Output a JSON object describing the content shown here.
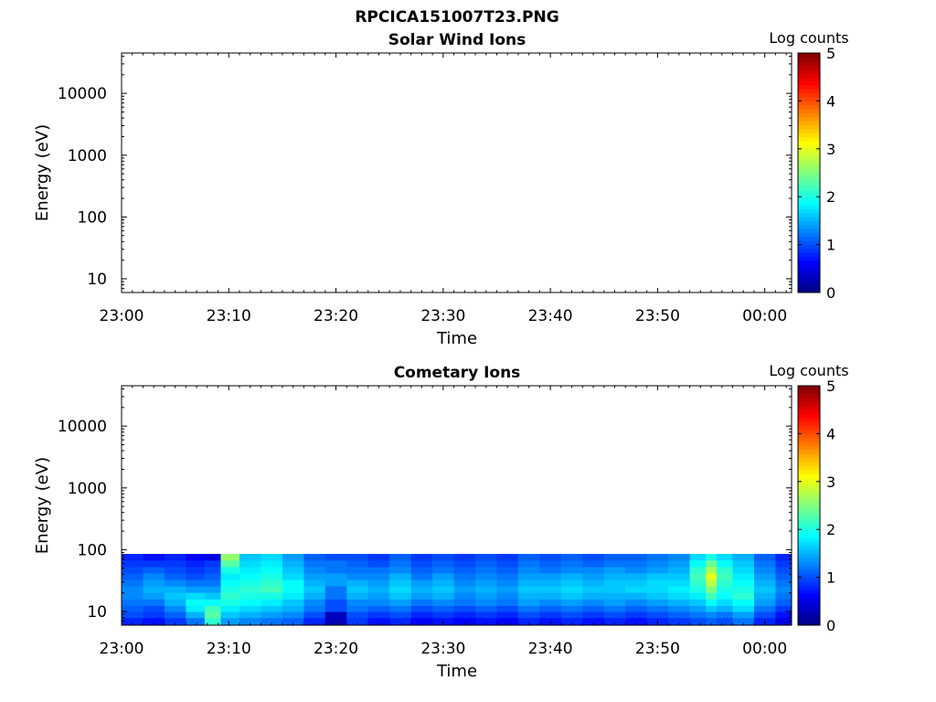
{
  "figure": {
    "title": "RPCICA151007T23.PNG"
  },
  "colormap": [
    "#00007f",
    "#0000ff",
    "#007fff",
    "#00ffff",
    "#7fff7f",
    "#ffff00",
    "#ff7f00",
    "#ff0000",
    "#7f0000"
  ],
  "chart_data": [
    {
      "type": "heatmap",
      "title": "Solar Wind Ions",
      "xlabel": "Time",
      "ylabel": "Energy (eV)",
      "x_ticks": [
        "23:00",
        "23:10",
        "23:20",
        "23:30",
        "23:40",
        "23:50",
        "00:00"
      ],
      "x_tick_minutes": [
        0,
        10,
        20,
        30,
        40,
        50,
        60
      ],
      "xlim_minutes": [
        0,
        62.5
      ],
      "y_scale": "log",
      "ylim": [
        6,
        45000
      ],
      "y_ticks": [
        10,
        100,
        1000,
        10000
      ],
      "y_tick_labels": [
        "10",
        "100",
        "1000",
        "10000"
      ],
      "colorbar": {
        "label": "Log counts",
        "range": [
          0,
          5
        ],
        "ticks": [
          "0",
          "1",
          "2",
          "3",
          "4",
          "5"
        ]
      },
      "data": []
    },
    {
      "type": "heatmap",
      "title": "Cometary Ions",
      "xlabel": "Time",
      "ylabel": "Energy (eV)",
      "x_ticks": [
        "23:00",
        "23:10",
        "23:20",
        "23:30",
        "23:40",
        "23:50",
        "00:00"
      ],
      "x_tick_minutes": [
        0,
        10,
        20,
        30,
        40,
        50,
        60
      ],
      "xlim_minutes": [
        0,
        62.5
      ],
      "y_scale": "log",
      "ylim": [
        6,
        45000
      ],
      "y_ticks": [
        10,
        100,
        1000,
        10000
      ],
      "y_tick_labels": [
        "10",
        "100",
        "1000",
        "10000"
      ],
      "colorbar": {
        "label": "Log counts",
        "range": [
          0,
          5
        ],
        "ticks": [
          "0",
          "1",
          "2",
          "3",
          "4",
          "5"
        ]
      },
      "energy_bins_eV": [
        7,
        9,
        11,
        14,
        18,
        23,
        29,
        37,
        47,
        60,
        76
      ],
      "time_bins_minutes": [
        1,
        3,
        5,
        7,
        8.5,
        10,
        12,
        14,
        16,
        18,
        20,
        22,
        24,
        26,
        28,
        30,
        32,
        34,
        36,
        38,
        40,
        42,
        44,
        46,
        48,
        50,
        52,
        54,
        55,
        56,
        58,
        60,
        62
      ],
      "log_counts": [
        [
          0.8,
          1.0,
          1.1,
          1.2,
          1.3,
          1.3,
          1.2,
          1.1,
          1.0,
          0.9,
          0.8
        ],
        [
          0.7,
          0.9,
          1.0,
          1.2,
          1.4,
          1.5,
          1.4,
          1.3,
          1.1,
          0.9,
          0.7
        ],
        [
          0.9,
          1.1,
          1.3,
          1.5,
          1.6,
          1.5,
          1.3,
          1.1,
          1.0,
          0.9,
          0.8
        ],
        [
          1.2,
          1.5,
          1.8,
          1.9,
          1.7,
          1.4,
          1.2,
          1.0,
          0.9,
          0.8,
          0.6
        ],
        [
          2.1,
          2.3,
          2.2,
          1.9,
          1.6,
          1.4,
          1.2,
          1.1,
          1.0,
          0.9,
          0.5
        ],
        [
          1.4,
          1.6,
          1.8,
          2.0,
          2.1,
          2.0,
          1.9,
          1.8,
          2.0,
          2.3,
          2.6
        ],
        [
          1.3,
          1.5,
          1.7,
          1.9,
          2.0,
          2.1,
          2.0,
          1.9,
          1.8,
          1.7,
          1.6
        ],
        [
          1.2,
          1.4,
          1.6,
          1.8,
          2.0,
          2.2,
          2.1,
          2.0,
          1.9,
          1.8,
          1.7
        ],
        [
          1.1,
          1.3,
          1.5,
          1.6,
          1.8,
          1.9,
          1.9,
          1.7,
          1.6,
          1.5,
          1.4
        ],
        [
          0.8,
          1.0,
          1.2,
          1.3,
          1.5,
          1.6,
          1.5,
          1.4,
          1.3,
          1.2,
          1.1
        ],
        [
          0.3,
          0.3,
          1.0,
          1.0,
          1.2,
          1.2,
          1.4,
          1.4,
          1.2,
          1.2,
          1.0
        ],
        [
          0.9,
          1.0,
          1.2,
          1.3,
          1.5,
          1.6,
          1.5,
          1.3,
          1.2,
          1.1,
          1.0
        ],
        [
          0.7,
          0.9,
          1.1,
          1.3,
          1.4,
          1.5,
          1.4,
          1.3,
          1.2,
          1.0,
          0.9
        ],
        [
          0.8,
          1.0,
          1.2,
          1.4,
          1.6,
          1.7,
          1.6,
          1.5,
          1.3,
          1.2,
          1.1
        ],
        [
          0.6,
          0.8,
          1.0,
          1.2,
          1.4,
          1.5,
          1.4,
          1.2,
          1.1,
          1.0,
          0.9
        ],
        [
          0.7,
          0.9,
          1.1,
          1.3,
          1.5,
          1.6,
          1.5,
          1.4,
          1.2,
          1.1,
          1.0
        ],
        [
          0.6,
          0.8,
          1.0,
          1.2,
          1.3,
          1.4,
          1.3,
          1.2,
          1.1,
          1.0,
          0.9
        ],
        [
          0.7,
          0.9,
          1.1,
          1.3,
          1.4,
          1.5,
          1.4,
          1.3,
          1.2,
          1.1,
          1.0
        ],
        [
          0.6,
          0.8,
          1.0,
          1.2,
          1.3,
          1.4,
          1.3,
          1.2,
          1.1,
          1.0,
          0.9
        ],
        [
          0.8,
          1.0,
          1.2,
          1.4,
          1.5,
          1.6,
          1.5,
          1.4,
          1.3,
          1.2,
          1.1
        ],
        [
          0.7,
          0.9,
          1.1,
          1.3,
          1.5,
          1.6,
          1.5,
          1.4,
          1.2,
          1.1,
          1.0
        ],
        [
          0.8,
          1.0,
          1.2,
          1.4,
          1.6,
          1.7,
          1.6,
          1.5,
          1.3,
          1.2,
          1.1
        ],
        [
          0.7,
          0.9,
          1.1,
          1.3,
          1.5,
          1.6,
          1.5,
          1.4,
          1.3,
          1.1,
          1.0
        ],
        [
          0.8,
          1.0,
          1.2,
          1.4,
          1.5,
          1.6,
          1.6,
          1.5,
          1.4,
          1.2,
          1.1
        ],
        [
          0.7,
          0.9,
          1.1,
          1.3,
          1.5,
          1.7,
          1.6,
          1.5,
          1.3,
          1.2,
          1.1
        ],
        [
          0.8,
          1.0,
          1.2,
          1.4,
          1.6,
          1.7,
          1.7,
          1.6,
          1.4,
          1.3,
          1.2
        ],
        [
          0.9,
          1.1,
          1.3,
          1.5,
          1.7,
          1.8,
          1.7,
          1.6,
          1.5,
          1.4,
          1.3
        ],
        [
          1.0,
          1.2,
          1.4,
          1.6,
          1.8,
          2.0,
          2.1,
          2.2,
          2.1,
          1.9,
          1.7
        ],
        [
          1.1,
          1.3,
          1.6,
          1.9,
          2.2,
          2.5,
          2.8,
          3.0,
          2.7,
          2.4,
          2.0
        ],
        [
          1.0,
          1.2,
          1.5,
          1.7,
          1.9,
          2.0,
          2.1,
          2.2,
          2.1,
          1.9,
          1.7
        ],
        [
          1.2,
          1.4,
          1.7,
          1.9,
          2.1,
          2.0,
          1.9,
          1.8,
          1.7,
          1.6,
          1.5
        ],
        [
          0.8,
          1.0,
          1.2,
          1.4,
          1.5,
          1.6,
          1.5,
          1.4,
          1.3,
          1.2,
          1.1
        ],
        [
          0.5,
          0.7,
          0.9,
          1.1,
          1.2,
          1.3,
          1.2,
          1.1,
          1.0,
          0.9,
          0.8
        ]
      ]
    }
  ]
}
